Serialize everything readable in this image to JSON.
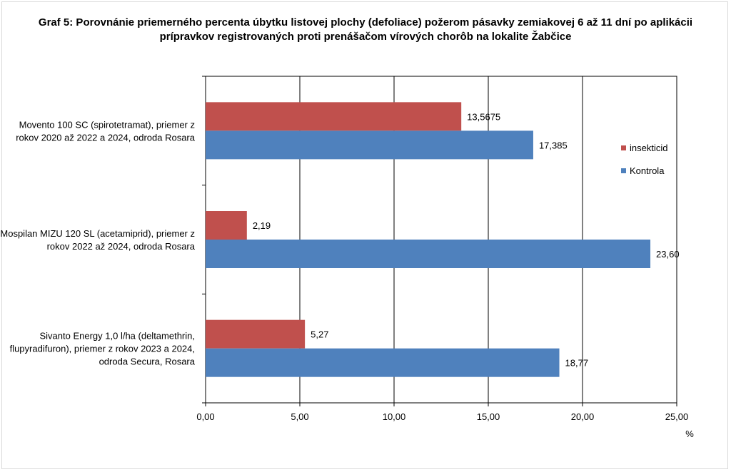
{
  "chart_data": {
    "type": "bar",
    "orientation": "horizontal",
    "title": "Graf 5: Porovnánie priemerného percenta úbytku listovej plochy (defoliace) požerom pásavky zemiakovej 6 až 11 dní po aplikácii prípravkov registrovaných proti prenášačom vírových chorôb na lokalite Žabčice",
    "categories": [
      [
        "Movento 100 SC (spirotetramat), priemer z",
        "rokov 2020 až 2022 a 2024, odroda Rosara"
      ],
      [
        "Mospilan MIZU 120 SL (acetamiprid), priemer z",
        "rokov  2022 až 2024, odroda Rosara"
      ],
      [
        "Sivanto Energy 1,0 l/ha (deltamethrin,",
        "flupyradifuron), priemer z rokov 2023 a 2024,",
        "odroda Secura, Rosara"
      ]
    ],
    "series": [
      {
        "name": "insekticid",
        "color": "#c0504d",
        "values": [
          13.5675,
          2.19,
          5.27
        ],
        "labels": [
          "13,5675",
          "2,19",
          "5,27"
        ]
      },
      {
        "name": "Kontrola",
        "color": "#4f81bd",
        "values": [
          17.385,
          23.6,
          18.77
        ],
        "labels": [
          "17,385",
          "23,60",
          "18,77"
        ]
      }
    ],
    "xlim": [
      0,
      25
    ],
    "xticks": [
      "0,00",
      "5,00",
      "10,00",
      "15,00",
      "20,00",
      "25,00"
    ],
    "xunit": "%",
    "grid": true,
    "legend_position": "right"
  }
}
